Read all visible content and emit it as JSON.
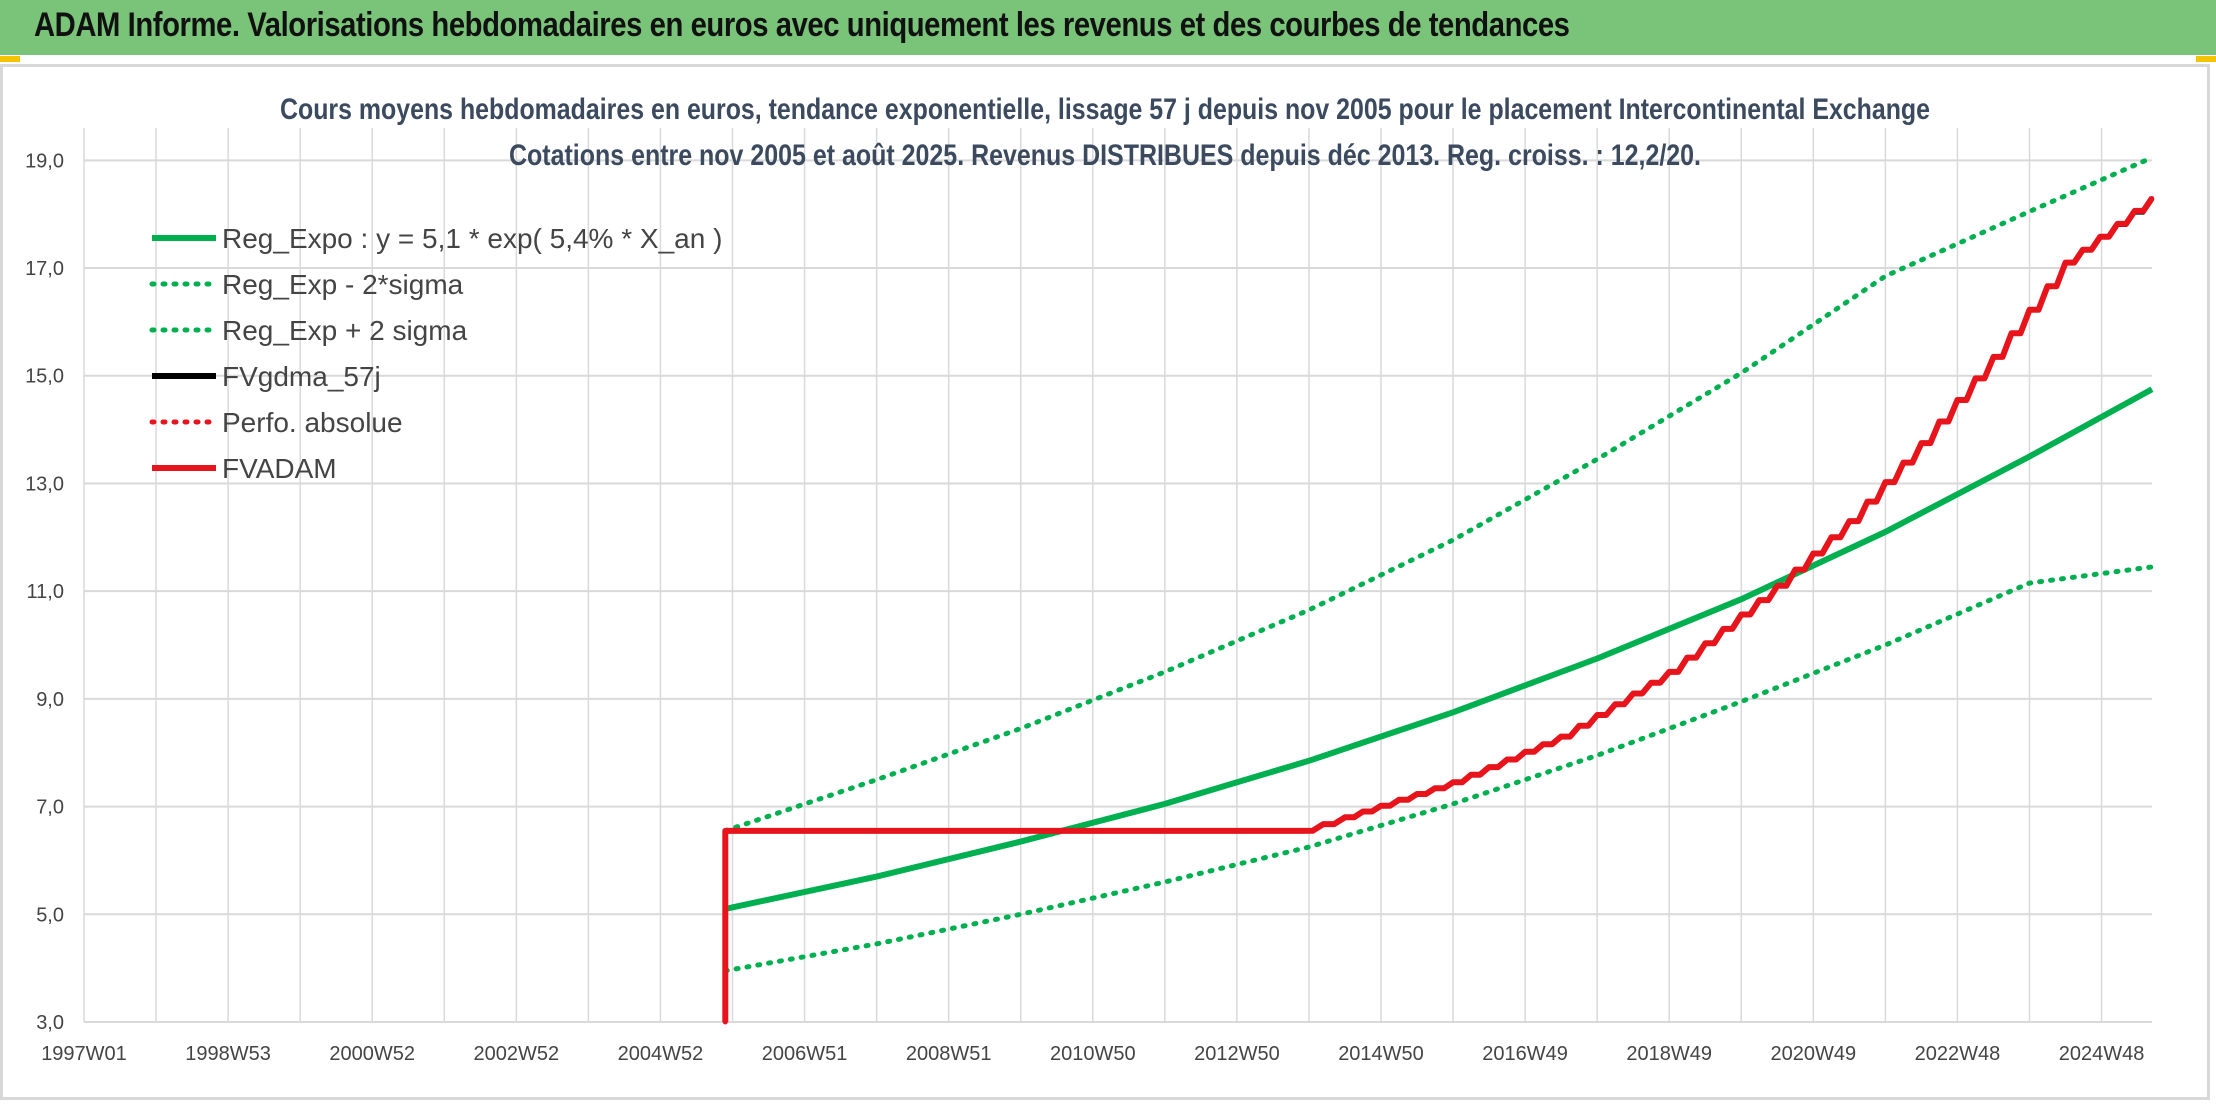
{
  "header": {
    "title": "ADAM Informe. Valorisations hebdomadaires en euros avec uniquement les revenus et des courbes de tendances"
  },
  "colors": {
    "banner": "#7ac47a",
    "green": "#00b050",
    "red": "#e8141b",
    "black": "#000000",
    "grid": "#d9d9d9"
  },
  "chart_data": {
    "type": "line",
    "title_line1": "Cours moyens hebdomadaires en euros, tendance exponentielle, lissage 57 j depuis nov 2005 pour le placement Intercontinental Exchange",
    "title_line2": "Cotations entre nov 2005 et août 2025. Revenus DISTRIBUES depuis déc 2013. Reg. croiss. : 12,2/20.",
    "x_tick_labels": [
      "1997W01",
      "1998W53",
      "2000W52",
      "2002W52",
      "2004W52",
      "2006W51",
      "2008W51",
      "2010W50",
      "2012W50",
      "2014W50",
      "2016W49",
      "2018W49",
      "2020W49",
      "2022W48",
      "2024W48"
    ],
    "x_tick_years": [
      1997.0,
      1999.0,
      2001.0,
      2003.0,
      2005.0,
      2007.0,
      2009.0,
      2011.0,
      2013.0,
      2015.0,
      2017.0,
      2019.0,
      2021.0,
      2023.0,
      2025.0
    ],
    "x_range": [
      1997.0,
      2025.7
    ],
    "y_ticks": [
      "3,0",
      "5,0",
      "7,0",
      "9,0",
      "11,0",
      "13,0",
      "15,0",
      "17,0",
      "19,0"
    ],
    "y_tick_values": [
      3,
      5,
      7,
      9,
      11,
      13,
      15,
      17,
      19
    ],
    "ylim": [
      3,
      19.6
    ],
    "grid": true,
    "legend_position": "top-left",
    "series": [
      {
        "name": "Reg_Expo : y = 5,1 * exp( 5,4% *  X_an )",
        "style": "solid",
        "color": "#00b050",
        "x": [
          2005.9,
          2008,
          2010,
          2012,
          2014,
          2016,
          2018,
          2020,
          2022,
          2024,
          2025.7
        ],
        "y": [
          5.1,
          5.7,
          6.35,
          7.05,
          7.85,
          8.75,
          9.75,
          10.85,
          12.1,
          13.5,
          14.75
        ]
      },
      {
        "name": "Reg_Exp - 2*sigma",
        "style": "dotted",
        "color": "#00b050",
        "x": [
          2005.9,
          2008,
          2010,
          2012,
          2014,
          2016,
          2018,
          2020,
          2022,
          2024,
          2025.7
        ],
        "y": [
          3.95,
          4.45,
          5.0,
          5.6,
          6.25,
          7.05,
          7.95,
          8.95,
          10.0,
          11.15,
          11.45
        ]
      },
      {
        "name": "Reg_Exp + 2 sigma",
        "style": "dotted",
        "color": "#00b050",
        "x": [
          2005.9,
          2008,
          2010,
          2012,
          2014,
          2016,
          2018,
          2020,
          2022,
          2024,
          2025.7
        ],
        "y": [
          6.55,
          7.5,
          8.45,
          9.5,
          10.65,
          11.95,
          13.45,
          15.05,
          16.85,
          18.05,
          19.05
        ]
      },
      {
        "name": "FVgdma_57j",
        "style": "solid",
        "color": "#000000",
        "x": [
          2005.9,
          2005.9,
          2013.9,
          2014.5,
          2016,
          2017.5,
          2019,
          2020.5,
          2021.5,
          2022.5,
          2023.5,
          2024.5,
          2025.7
        ],
        "y": [
          3.0,
          6.55,
          6.55,
          6.8,
          7.45,
          8.3,
          9.5,
          11.1,
          12.3,
          13.75,
          15.35,
          17.1,
          18.25
        ]
      },
      {
        "name": "Perfo. absolue",
        "style": "dotted",
        "color": "#e8141b",
        "x": [
          2005.9,
          2005.9,
          2013.9,
          2014.5,
          2016,
          2017.5,
          2019,
          2020.5,
          2021.5,
          2022.5,
          2023.5,
          2024.5,
          2025.7
        ],
        "y": [
          3.0,
          6.55,
          6.55,
          6.8,
          7.45,
          8.3,
          9.5,
          11.1,
          12.3,
          13.75,
          15.35,
          17.1,
          18.3
        ]
      },
      {
        "name": "FVADAM",
        "style": "solid-steps",
        "color": "#e8141b",
        "x": [
          2005.9,
          2005.9,
          2013.9,
          2014.5,
          2016,
          2017.5,
          2019,
          2020.5,
          2021.5,
          2022.5,
          2023.5,
          2024.5,
          2025.7
        ],
        "y": [
          3.0,
          6.55,
          6.55,
          6.8,
          7.45,
          8.3,
          9.5,
          11.1,
          12.3,
          13.75,
          15.35,
          17.1,
          18.3
        ]
      }
    ]
  }
}
